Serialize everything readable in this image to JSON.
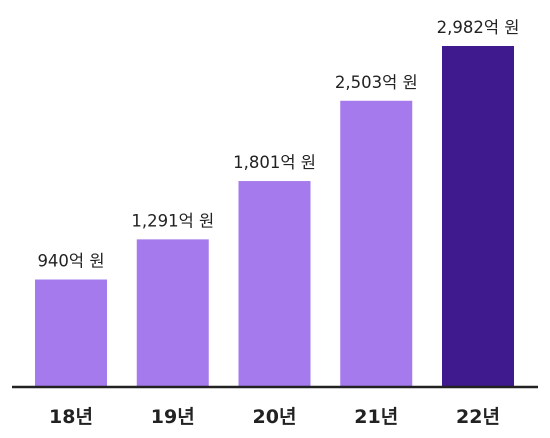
{
  "chart_data": {
    "type": "bar",
    "categories": [
      "18년",
      "19년",
      "20년",
      "21년",
      "22년"
    ],
    "values": [
      940,
      1291,
      1801,
      2503,
      2982
    ],
    "value_labels": [
      "940억 원",
      "1,291억 원",
      "1,801억 원",
      "2,503억 원",
      "2,982억 원"
    ],
    "unit": "억 원",
    "title": "",
    "xlabel": "",
    "ylabel": "",
    "ylim": [
      0,
      2982
    ],
    "grid": false,
    "legend": "none",
    "colors": {
      "bar": "#a57aec",
      "highlight_bar": "#3f1a8f",
      "axis": "#222222",
      "text": "#222222"
    },
    "highlight_index": 4
  }
}
